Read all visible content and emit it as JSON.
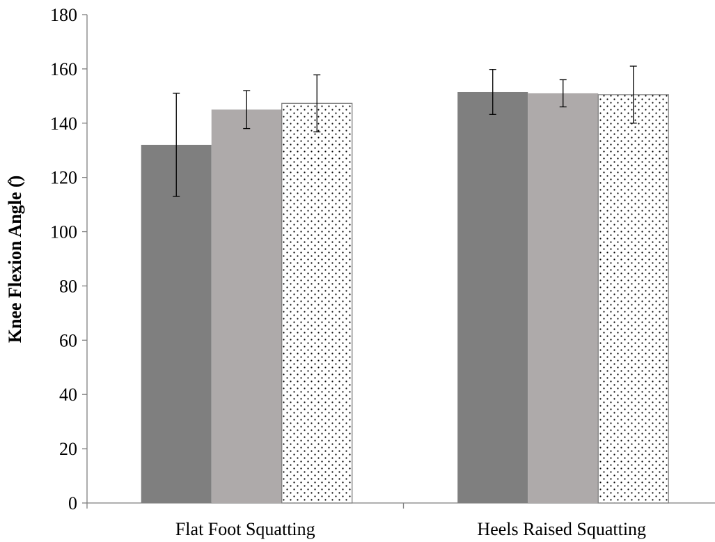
{
  "chart_data": {
    "type": "bar",
    "title": "",
    "xlabel": "",
    "ylabel": "Knee Flexion Angle (̊)",
    "ylim": [
      0,
      180
    ],
    "yticks": [
      0,
      20,
      40,
      60,
      80,
      100,
      120,
      140,
      160,
      180
    ],
    "categories": [
      "Flat Foot Squatting",
      "Heels Raised Squatting"
    ],
    "grid": false,
    "legend": "none",
    "series": [
      {
        "values": [
          132,
          151.5
        ],
        "errors": [
          19,
          8.3
        ],
        "color": "#7f7f7f",
        "pattern": "solid"
      },
      {
        "values": [
          145,
          151
        ],
        "errors": [
          7,
          5
        ],
        "color": "#aeaaaa",
        "pattern": "solid"
      },
      {
        "values": [
          147.3,
          150.5
        ],
        "errors": [
          10.5,
          10.5
        ],
        "color": "#ffffff",
        "pattern": "dots"
      }
    ]
  }
}
